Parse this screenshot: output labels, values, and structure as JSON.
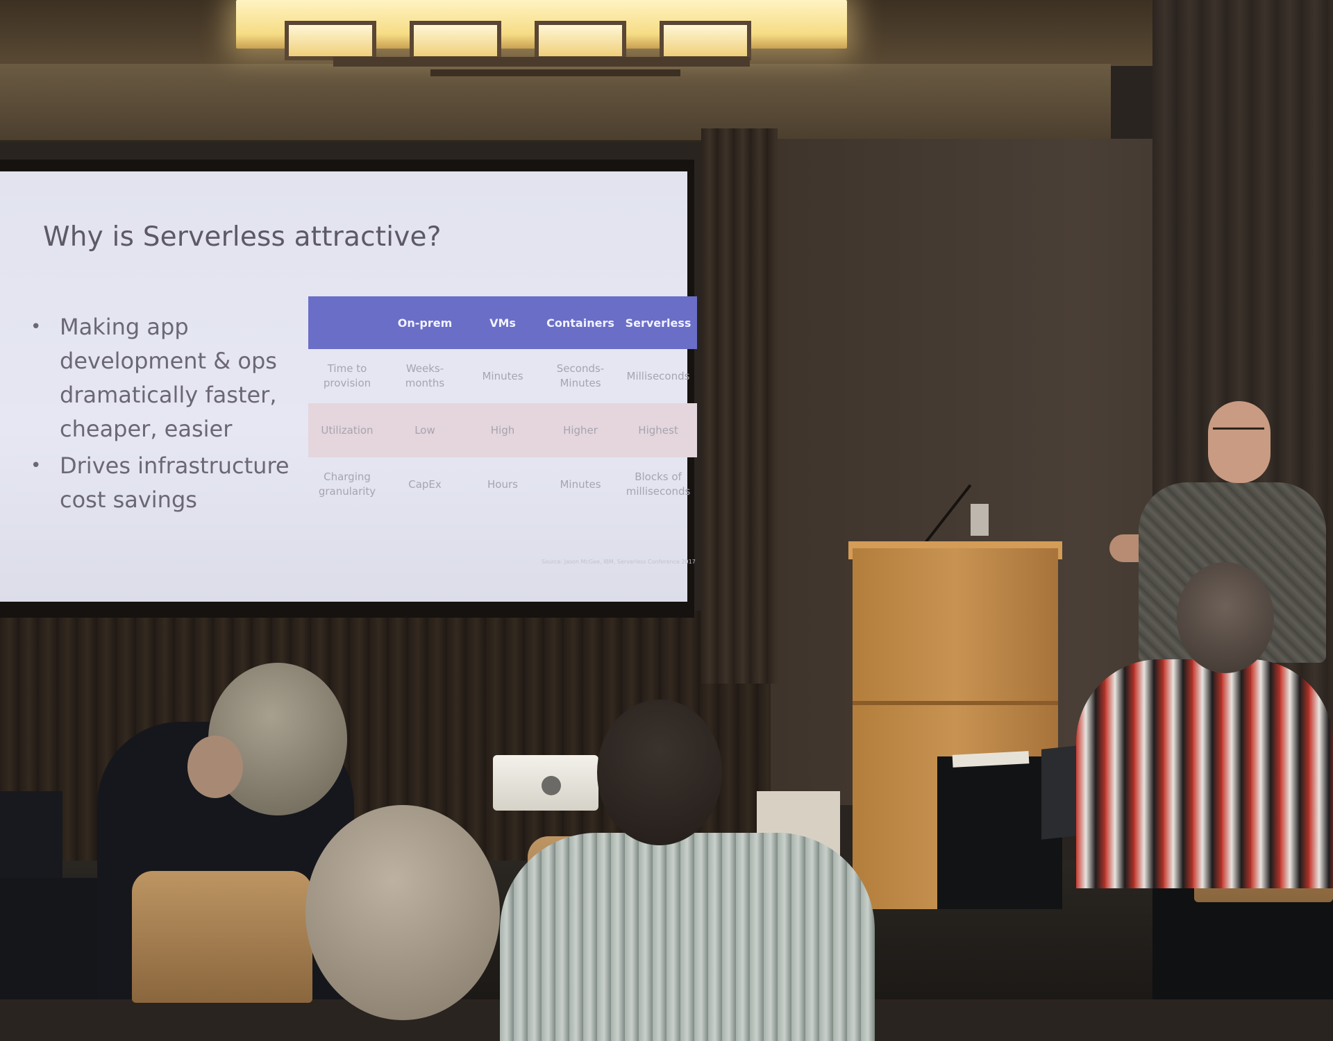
{
  "slide": {
    "title": "Why is Serverless attractive?",
    "bullets": [
      "Making app development & ops dramatically faster, cheaper, easier",
      "Drives infrastructure cost savings"
    ],
    "table": {
      "headers": [
        "",
        "On-prem",
        "VMs",
        "Containers",
        "Serverless"
      ],
      "rows": [
        [
          "Time to provision",
          "Weeks-months",
          "Minutes",
          "Seconds-Minutes",
          "Milliseconds"
        ],
        [
          "Utilization",
          "Low",
          "High",
          "Higher",
          "Highest"
        ],
        [
          "Charging granularity",
          "CapEx",
          "Hours",
          "Minutes",
          "Blocks of milliseconds"
        ]
      ]
    },
    "source": "Source: Jason McGee, IBM, Serverless Conference 2017",
    "colors": {
      "table_header": "#6a6ec6",
      "shaded_row": "#e4d6dc",
      "slide_background": "#e4e5f0"
    }
  }
}
